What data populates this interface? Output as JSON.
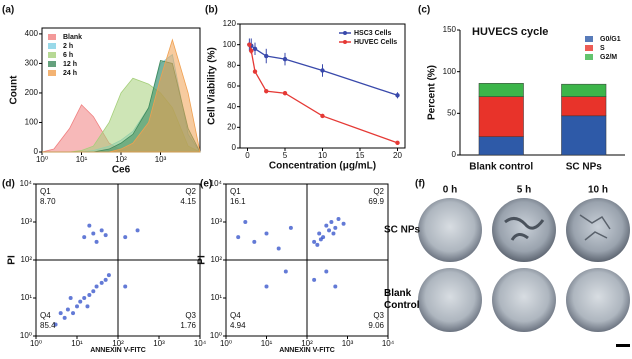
{
  "chart_data": [
    {
      "type": "area",
      "panel": "(a)",
      "xlabel": "Ce6",
      "ylabel": "Count",
      "xscale": "log",
      "xlim": [
        1,
        10000
      ],
      "xticks": [
        {
          "value": 1,
          "label": "10⁰"
        },
        {
          "value": 10,
          "label": "10¹"
        },
        {
          "value": 100,
          "label": "10²"
        },
        {
          "value": 1000,
          "label": "10³"
        }
      ],
      "ylim": [
        0,
        420
      ],
      "yticks": [
        0,
        100,
        200,
        300,
        400
      ],
      "legend": "upper left",
      "x": [
        1,
        2,
        5,
        10,
        20,
        50,
        100,
        200,
        500,
        1000,
        2000,
        5000,
        10000
      ],
      "series": [
        {
          "name": "Blank",
          "color": "#f08080",
          "values": [
            0,
            10,
            80,
            160,
            120,
            30,
            5,
            0,
            0,
            0,
            0,
            0,
            0
          ]
        },
        {
          "name": "2 h",
          "color": "#7fcfe3",
          "values": [
            0,
            0,
            0,
            0,
            5,
            20,
            40,
            70,
            150,
            300,
            330,
            60,
            0
          ]
        },
        {
          "name": "6 h",
          "color": "#a5cf7a",
          "values": [
            0,
            0,
            0,
            5,
            20,
            100,
            200,
            250,
            230,
            200,
            150,
            20,
            0
          ]
        },
        {
          "name": "12 h",
          "color": "#3f8a5c",
          "values": [
            0,
            0,
            0,
            0,
            0,
            10,
            30,
            60,
            150,
            310,
            300,
            80,
            0
          ]
        },
        {
          "name": "24 h",
          "color": "#f0a050",
          "values": [
            0,
            0,
            0,
            0,
            0,
            0,
            10,
            30,
            100,
            250,
            380,
            200,
            0
          ]
        }
      ]
    },
    {
      "type": "line",
      "panel": "(b)",
      "xlabel": "Concentration (μg/mL)",
      "ylabel": "Cell Viability (%)",
      "xlim": [
        -1,
        21
      ],
      "xticks": [
        0,
        5,
        10,
        15,
        20
      ],
      "ylim": [
        0,
        120
      ],
      "yticks": [
        0,
        20,
        40,
        60,
        80,
        100,
        120
      ],
      "legend": "upper right",
      "x": [
        0.25,
        0.5,
        1,
        2.5,
        5,
        10,
        20
      ],
      "series": [
        {
          "name": "HSC3 Cells",
          "color": "#3949ab",
          "values": [
            100,
            99,
            96,
            89,
            86,
            75,
            51
          ],
          "errors": [
            6,
            7,
            6,
            7,
            6,
            6,
            3
          ]
        },
        {
          "name": "HUVEC Cells",
          "color": "#e53935",
          "values": [
            100,
            94,
            74,
            55,
            53,
            31,
            5
          ],
          "errors": [
            2,
            3,
            2,
            2,
            2,
            2,
            1
          ]
        }
      ]
    },
    {
      "type": "bar",
      "panel": "(c)",
      "title": "HUVECS cycle",
      "ylabel": "Percent (%)",
      "stacked": true,
      "categories": [
        "Blank control",
        "SC NPs"
      ],
      "ylim": [
        0,
        150
      ],
      "yticks": [
        0,
        50,
        100,
        150
      ],
      "legend": "upper right",
      "series": [
        {
          "name": "G0/G1",
          "color": "#2e5aa8",
          "values": [
            22,
            47
          ]
        },
        {
          "name": "S",
          "color": "#e8332a",
          "values": [
            48,
            23
          ]
        },
        {
          "name": "G2/M",
          "color": "#3cb54a",
          "values": [
            16,
            15
          ]
        }
      ]
    },
    {
      "type": "scatter",
      "panel": "(d)",
      "xlabel": "ANNEXIN V-FITC",
      "ylabel": "PI",
      "xscale": "log",
      "yscale": "log",
      "xlim": [
        1,
        10000
      ],
      "ylim": [
        1,
        10000
      ],
      "xticks": [
        {
          "value": 1,
          "label": "10⁰"
        },
        {
          "value": 10,
          "label": "10¹"
        },
        {
          "value": 100,
          "label": "10²"
        },
        {
          "value": 1000,
          "label": "10³"
        },
        {
          "value": 10000,
          "label": "10⁴"
        }
      ],
      "yticks": [
        {
          "value": 1,
          "label": "10⁰"
        },
        {
          "value": 10,
          "label": "10¹"
        },
        {
          "value": 100,
          "label": "10²"
        },
        {
          "value": 1000,
          "label": "10³"
        },
        {
          "value": 10000,
          "label": "10⁴"
        }
      ],
      "gate": [
        100,
        100
      ],
      "color": "#2142c4",
      "quadrant_names": [
        "Q1",
        "Q2",
        "Q3",
        "Q4"
      ],
      "quadrant_values": [
        8.7,
        4.15,
        1.76,
        85.4
      ],
      "quadrant_value_labels": [
        "8.70",
        "4.15",
        "1.76",
        "85.4"
      ],
      "points_x": [
        3,
        5,
        6,
        8,
        10,
        12,
        15,
        20,
        25,
        30,
        40,
        50,
        7,
        18,
        4,
        60,
        15,
        25,
        30,
        40,
        20,
        50,
        150,
        300,
        150
      ],
      "points_y": [
        2,
        3,
        5,
        4,
        6,
        8,
        10,
        12,
        15,
        20,
        25,
        30,
        10,
        6,
        4,
        40,
        400,
        500,
        300,
        600,
        800,
        450,
        400,
        600,
        20
      ]
    },
    {
      "type": "scatter",
      "panel": "(e)",
      "xlabel": "ANNEXIN V-FITC",
      "ylabel": "PI",
      "xscale": "log",
      "yscale": "log",
      "xlim": [
        1,
        10000
      ],
      "ylim": [
        1,
        10000
      ],
      "xticks": [
        {
          "value": 1,
          "label": "10⁰"
        },
        {
          "value": 10,
          "label": "10¹"
        },
        {
          "value": 100,
          "label": "10²"
        },
        {
          "value": 1000,
          "label": "10³"
        },
        {
          "value": 10000,
          "label": "10⁴"
        }
      ],
      "yticks": [
        {
          "value": 1,
          "label": "10⁰"
        },
        {
          "value": 10,
          "label": "10¹"
        },
        {
          "value": 100,
          "label": "10²"
        },
        {
          "value": 1000,
          "label": "10³"
        },
        {
          "value": 10000,
          "label": "10⁴"
        }
      ],
      "gate": [
        100,
        100
      ],
      "color": "#2142c4",
      "quadrant_names": [
        "Q1",
        "Q2",
        "Q3",
        "Q4"
      ],
      "quadrant_values": [
        16.1,
        69.9,
        9.06,
        4.94
      ],
      "points_x": [
        150,
        200,
        300,
        400,
        250,
        500,
        180,
        350,
        600,
        800,
        220,
        450,
        5,
        10,
        3,
        20,
        40,
        2,
        150,
        300,
        500,
        10,
        30
      ],
      "points_y": [
        300,
        500,
        800,
        1000,
        400,
        700,
        250,
        600,
        1200,
        900,
        350,
        500,
        300,
        500,
        1000,
        200,
        700,
        400,
        30,
        50,
        20,
        20,
        50
      ]
    }
  ],
  "images": {
    "panel": "(f)",
    "columns": [
      "0 h",
      "5 h",
      "10 h"
    ],
    "rows": [
      "SC NPs",
      "Blank Control"
    ]
  }
}
